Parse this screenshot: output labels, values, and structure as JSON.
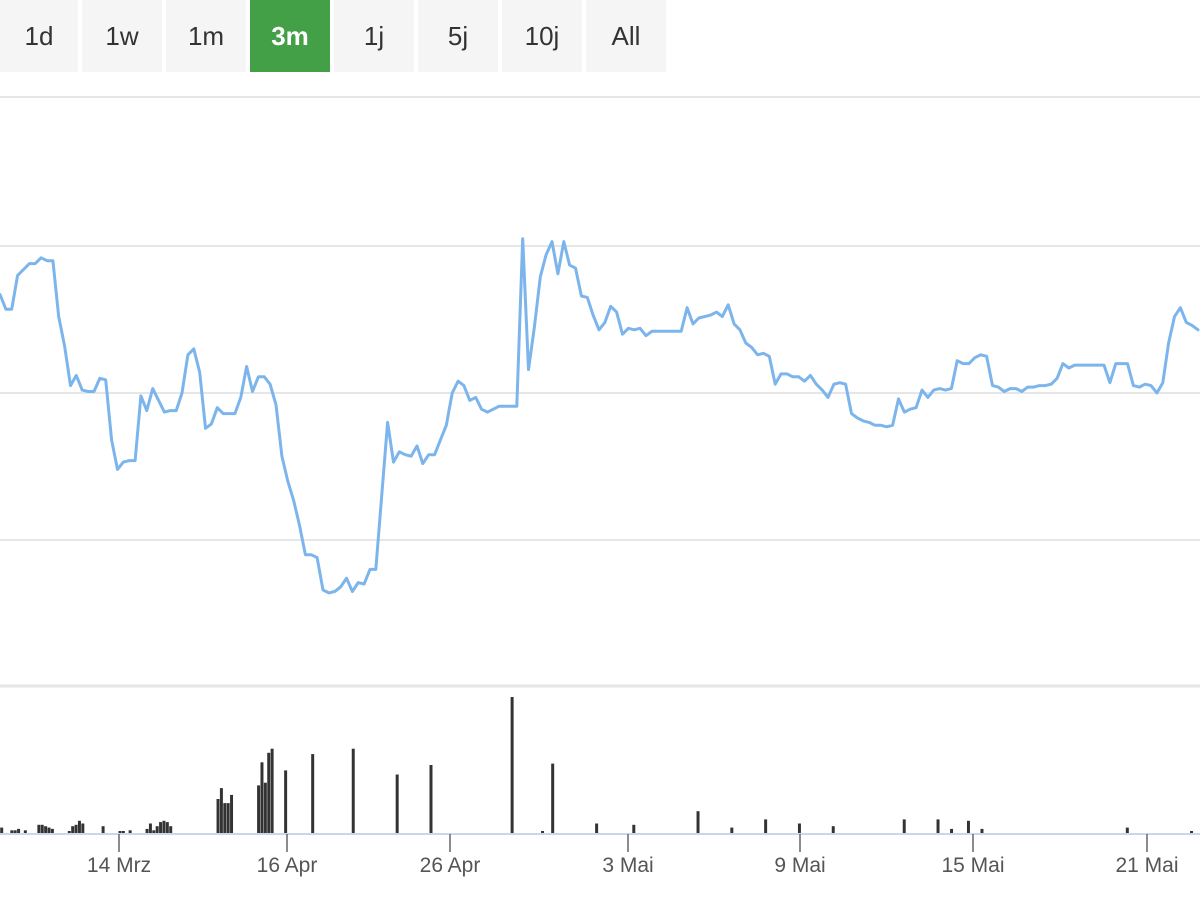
{
  "range_tabs": [
    {
      "label": "1d",
      "active": false
    },
    {
      "label": "1w",
      "active": false
    },
    {
      "label": "1m",
      "active": false
    },
    {
      "label": "3m",
      "active": true
    },
    {
      "label": "1j",
      "active": false
    },
    {
      "label": "5j",
      "active": false
    },
    {
      "label": "10j",
      "active": false
    },
    {
      "label": "All",
      "active": false
    }
  ],
  "colors": {
    "accent": "#43a047",
    "price_line": "#7cb5ec",
    "volume_bar": "#333333",
    "grid": "#e6e6e6",
    "axis": "#ccd6eb"
  },
  "chart_data": [
    {
      "type": "line",
      "title": "",
      "grid": true,
      "x_tick_labels": [
        "14 Mrz",
        "16 Apr",
        "26 Apr",
        "3 Mai",
        "9 Mai",
        "15 Mai",
        "21 Mai"
      ],
      "series": [
        {
          "values": [
            0.67,
            0.57,
            0.57,
            0.8,
            0.84,
            0.88,
            0.88,
            0.92,
            0.9,
            0.9,
            0.52,
            0.32,
            0.05,
            0.12,
            0.02,
            0.01,
            0.01,
            0.1,
            0.09,
            -0.32,
            -0.52,
            -0.47,
            -0.46,
            -0.46,
            -0.02,
            -0.12,
            0.03,
            -0.05,
            -0.13,
            -0.12,
            -0.12,
            0.0,
            0.26,
            0.3,
            0.14,
            -0.24,
            -0.21,
            -0.1,
            -0.14,
            -0.14,
            -0.14,
            -0.03,
            0.18,
            0.01,
            0.11,
            0.11,
            0.06,
            -0.08,
            -0.43,
            -0.6,
            -0.73,
            -0.9,
            -1.1,
            -1.1,
            -1.12,
            -1.34,
            -1.36,
            -1.35,
            -1.32,
            -1.26,
            -1.35,
            -1.29,
            -1.3,
            -1.2,
            -1.2,
            -0.7,
            -0.2,
            -0.47,
            -0.4,
            -0.42,
            -0.43,
            -0.36,
            -0.48,
            -0.42,
            -0.42,
            -0.32,
            -0.22,
            0.0,
            0.08,
            0.05,
            -0.05,
            -0.03,
            -0.11,
            -0.13,
            -0.11,
            -0.09,
            -0.09,
            -0.09,
            -0.09,
            1.05,
            0.16,
            0.45,
            0.79,
            0.94,
            1.03,
            0.81,
            1.03,
            0.87,
            0.85,
            0.66,
            0.65,
            0.53,
            0.43,
            0.48,
            0.59,
            0.55,
            0.4,
            0.44,
            0.43,
            0.44,
            0.39,
            0.42,
            0.42,
            0.42,
            0.42,
            0.42,
            0.42,
            0.58,
            0.47,
            0.51,
            0.52,
            0.53,
            0.55,
            0.52,
            0.6,
            0.47,
            0.43,
            0.34,
            0.31,
            0.26,
            0.27,
            0.25,
            0.06,
            0.13,
            0.13,
            0.11,
            0.11,
            0.08,
            0.12,
            0.06,
            0.02,
            -0.03,
            0.06,
            0.07,
            0.06,
            -0.14,
            -0.17,
            -0.19,
            -0.2,
            -0.22,
            -0.22,
            -0.23,
            -0.22,
            -0.04,
            -0.13,
            -0.11,
            -0.1,
            0.02,
            -0.03,
            0.02,
            0.03,
            0.02,
            0.03,
            0.22,
            0.2,
            0.2,
            0.24,
            0.26,
            0.25,
            0.05,
            0.04,
            0.01,
            0.03,
            0.03,
            0.01,
            0.04,
            0.04,
            0.05,
            0.05,
            0.06,
            0.1,
            0.2,
            0.17,
            0.19,
            0.19,
            0.19,
            0.19,
            0.19,
            0.19,
            0.07,
            0.2,
            0.2,
            0.2,
            0.05,
            0.04,
            0.06,
            0.05,
            0.0,
            0.07,
            0.34,
            0.52,
            0.58,
            0.48,
            0.46,
            0.43
          ]
        }
      ]
    },
    {
      "type": "bar",
      "title": "",
      "grid": false,
      "series": [
        {
          "values": [
            4,
            0,
            0,
            2,
            2,
            3,
            0,
            2,
            0,
            0,
            0,
            6,
            6,
            5,
            4,
            3,
            0,
            0,
            0,
            0,
            1,
            5,
            6,
            9,
            7,
            0,
            0,
            0,
            0,
            0,
            5,
            0,
            0,
            0,
            0,
            1,
            1,
            0,
            2,
            0,
            0,
            0,
            0,
            3,
            7,
            2,
            5,
            8,
            9,
            8,
            5,
            0,
            0,
            0,
            0,
            0,
            0,
            0,
            0,
            0,
            0,
            0,
            0,
            0,
            25,
            33,
            22,
            22,
            28,
            0,
            0,
            0,
            0,
            0,
            0,
            0,
            35,
            52,
            37,
            59,
            62,
            0,
            0,
            0,
            46,
            0,
            0,
            0,
            0,
            0,
            0,
            0,
            58,
            0,
            0,
            0,
            0,
            0,
            0,
            0,
            0,
            0,
            0,
            0,
            62,
            0,
            0,
            0,
            0,
            0,
            0,
            0,
            0,
            0,
            0,
            0,
            0,
            43,
            0,
            0,
            0,
            0,
            0,
            0,
            0,
            0,
            0,
            50,
            0,
            0,
            0,
            0,
            0,
            0,
            0,
            0,
            0,
            0,
            0,
            0,
            0,
            0,
            0,
            0,
            0,
            0,
            0,
            0,
            0,
            0,
            0,
            100,
            0,
            0,
            0,
            0,
            0,
            0,
            0,
            0,
            1,
            0,
            0,
            51,
            0,
            0,
            0,
            0,
            0,
            0,
            0,
            0,
            0,
            0,
            0,
            0,
            7,
            0,
            0,
            0,
            0,
            0,
            0,
            0,
            0,
            0,
            0,
            6,
            0,
            0,
            0,
            0,
            0,
            0,
            0,
            0,
            0,
            0,
            0,
            0,
            0,
            0,
            0,
            0,
            0,
            0,
            16,
            0,
            0,
            0,
            0,
            0,
            0,
            0,
            0,
            0,
            4,
            0,
            0,
            0,
            0,
            0,
            0,
            0,
            0,
            0,
            10,
            0,
            0,
            0,
            0,
            0,
            0,
            0,
            0,
            0,
            7,
            0,
            0,
            0,
            0,
            0,
            0,
            0,
            0,
            0,
            5,
            0,
            0,
            0,
            0,
            0,
            0,
            0,
            0,
            0,
            0,
            0,
            0,
            0,
            0,
            0,
            0,
            0,
            0,
            0,
            0,
            10,
            0,
            0,
            0,
            0,
            0,
            0,
            0,
            0,
            0,
            10,
            0,
            0,
            0,
            3,
            0,
            0,
            0,
            0,
            9,
            0,
            0,
            0,
            3,
            0,
            0,
            0,
            0,
            0,
            0,
            0,
            0,
            0,
            0,
            0,
            0,
            0,
            0,
            0,
            0,
            0,
            0,
            0,
            0,
            0,
            0,
            0,
            0,
            0,
            0,
            0,
            0,
            0,
            0,
            0,
            0,
            0,
            0,
            0,
            0,
            0,
            0,
            0,
            0,
            0,
            0,
            4,
            0,
            0,
            0,
            0,
            0,
            0,
            0,
            0,
            0,
            0,
            0,
            0,
            0,
            0,
            0,
            0,
            0,
            0,
            1,
            0,
            0
          ]
        }
      ]
    }
  ]
}
